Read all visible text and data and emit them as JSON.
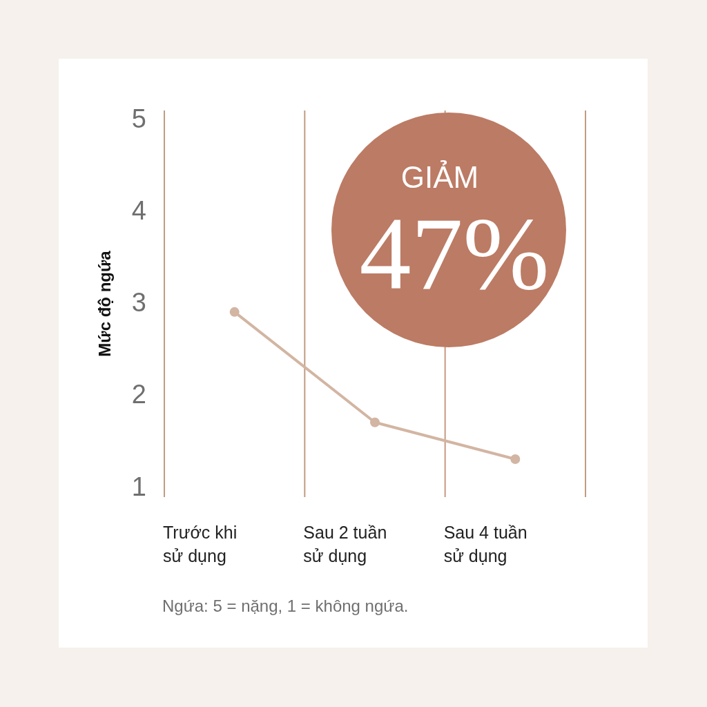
{
  "chart_data": {
    "type": "line",
    "ylabel": "Mức độ ngứa",
    "categories": [
      "Trước khi\nsử dụng",
      "Sau 2 tuần\nsử dụng",
      "Sau 4 tuần\nsử dụng"
    ],
    "series": [
      {
        "color": "#d2b5a2",
        "values": [
          2.9,
          1.7,
          1.3
        ]
      }
    ],
    "ylim": [
      1,
      5
    ],
    "yticks": [
      1,
      2,
      3,
      4,
      5
    ],
    "ref_lines": [
      {
        "axis": "x",
        "value": "Trước khi\nsử dụng",
        "color": "#c49a80"
      },
      {
        "axis": "x",
        "value": "Sau 2 tuần\nsử dụng",
        "color": "#c49a80"
      },
      {
        "axis": "x",
        "value": "Sau 4 tuần\nsử dụng",
        "color": "#c49a80"
      }
    ],
    "marker": "circle",
    "line_style": "solid",
    "annotations": [
      "GIẢM",
      "47%",
      "Ngứa: 5 = nặng, 1 = không ngứa."
    ]
  }
}
